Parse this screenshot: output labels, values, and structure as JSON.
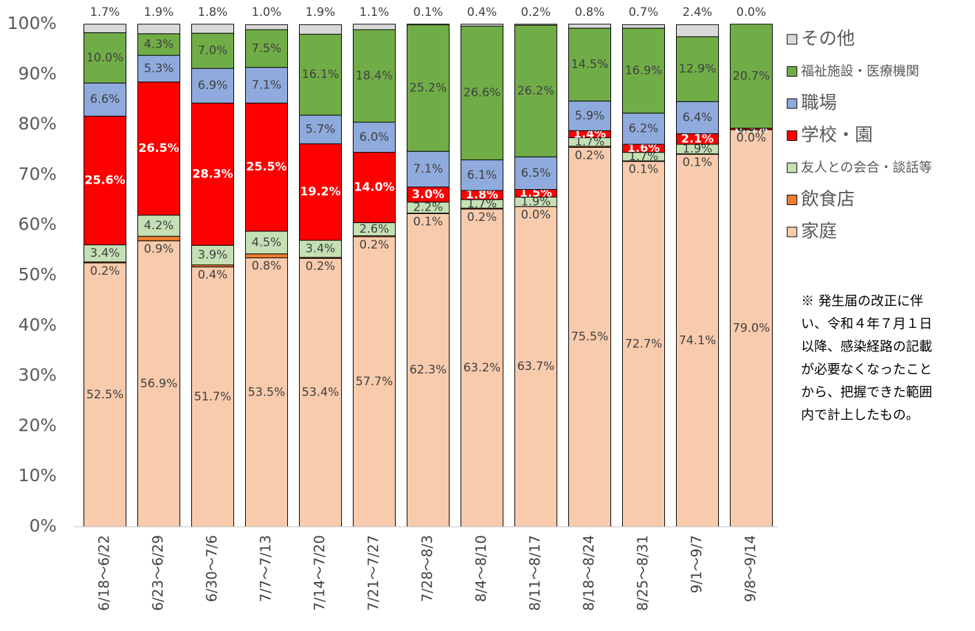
{
  "chart_data": {
    "type": "stacked_bar_percent",
    "categories": [
      "6/18～6/22",
      "6/23～6/29",
      "6/30～7/6",
      "7/7～7/13",
      "7/14～7/20",
      "7/21～7/27",
      "7/28～8/3",
      "8/4～8/10",
      "8/11～8/17",
      "8/18～8/24",
      "8/25～8/31",
      "9/1～9/7",
      "9/8～9/14"
    ],
    "series": [
      {
        "name": "家庭",
        "color": "#f8cbad",
        "values": [
          52.5,
          56.9,
          51.7,
          53.5,
          53.4,
          57.7,
          62.3,
          63.2,
          63.7,
          75.5,
          72.7,
          74.1,
          79.0
        ],
        "value_labels": [
          "52.5%",
          "56.9%",
          "51.7%",
          "53.5%",
          "53.4%",
          "57.7%",
          "62.3%",
          "63.2%",
          "63.7%",
          "75.5%",
          "72.7%",
          "74.1%",
          "79.0%"
        ]
      },
      {
        "name": "飲食店",
        "color": "#ed7d31",
        "values": [
          0.2,
          0.9,
          0.4,
          0.8,
          0.2,
          0.2,
          0.1,
          0.2,
          0.0,
          0.2,
          0.1,
          0.1,
          0.0
        ],
        "value_labels": [
          "0.2%",
          "0.9%",
          "0.4%",
          "0.8%",
          "0.2%",
          "0.2%",
          "0.1%",
          "0.2%",
          "0.0%",
          "0.2%",
          "0.1%",
          "0.1%",
          "0.0%"
        ]
      },
      {
        "name": "友人との会合・談話等",
        "color": "#c5e0b4",
        "values": [
          3.4,
          4.2,
          3.9,
          4.5,
          3.4,
          2.6,
          2.2,
          1.7,
          1.9,
          1.7,
          1.7,
          1.9,
          0.0
        ],
        "value_labels": [
          "3.4%",
          "4.2%",
          "3.9%",
          "4.5%",
          "3.4%",
          "2.6%",
          "2.2%",
          "1.7%",
          "1.9%",
          "1.7%",
          "1.7%",
          "1.9%",
          "0.0%"
        ]
      },
      {
        "name": "学校・園",
        "color": "#ff0000",
        "values": [
          25.6,
          26.5,
          28.3,
          25.5,
          19.2,
          14.0,
          3.0,
          1.8,
          1.5,
          1.4,
          1.6,
          2.1,
          0.3
        ],
        "value_labels": [
          "25.6%",
          "26.5%",
          "28.3%",
          "25.5%",
          "19.2%",
          "14.0%",
          "3.0%",
          "1.8%",
          "1.5%",
          "1.4%",
          "1.6%",
          "2.1%",
          "0.3%"
        ]
      },
      {
        "name": "職場",
        "color": "#8faadc",
        "values": [
          6.6,
          5.3,
          6.9,
          7.1,
          5.7,
          6.0,
          7.1,
          6.1,
          6.5,
          5.9,
          6.2,
          6.4,
          0.0
        ],
        "value_labels": [
          "6.6%",
          "5.3%",
          "6.9%",
          "7.1%",
          "5.7%",
          "6.0%",
          "7.1%",
          "6.1%",
          "6.5%",
          "5.9%",
          "6.2%",
          "6.4%",
          "0.0%"
        ]
      },
      {
        "name": "福祉施設・医療機関",
        "color": "#70ad47",
        "values": [
          10.0,
          4.3,
          7.0,
          7.5,
          16.1,
          18.4,
          25.2,
          26.6,
          26.2,
          14.5,
          16.9,
          12.9,
          20.7
        ],
        "value_labels": [
          "10.0%",
          "4.3%",
          "7.0%",
          "7.5%",
          "16.1%",
          "18.4%",
          "25.2%",
          "26.6%",
          "26.2%",
          "14.5%",
          "16.9%",
          "12.9%",
          "20.7%"
        ]
      },
      {
        "name": "その他",
        "color": "#d9d9d9",
        "values": [
          1.7,
          1.9,
          1.8,
          1.0,
          1.9,
          1.1,
          0.1,
          0.4,
          0.2,
          0.8,
          0.7,
          2.4,
          0.0
        ],
        "value_labels": [
          "1.7%",
          "1.9%",
          "1.8%",
          "1.0%",
          "1.9%",
          "1.1%",
          "0.1%",
          "0.4%",
          "0.2%",
          "0.8%",
          "0.7%",
          "2.4%",
          "0.0%"
        ]
      }
    ],
    "ylim": [
      0,
      100
    ],
    "yticks": [
      {
        "value": 0,
        "label": "0%"
      },
      {
        "value": 10,
        "label": "10%"
      },
      {
        "value": 20,
        "label": "20%"
      },
      {
        "value": 30,
        "label": "30%"
      },
      {
        "value": 40,
        "label": "40%"
      },
      {
        "value": 50,
        "label": "50%"
      },
      {
        "value": 60,
        "label": "60%"
      },
      {
        "value": 70,
        "label": "70%"
      },
      {
        "value": 80,
        "label": "80%"
      },
      {
        "value": 90,
        "label": "90%"
      },
      {
        "value": 100,
        "label": "100%"
      }
    ],
    "grid": false,
    "legend": "right",
    "note": [
      "※ 発生届の改正に伴",
      "い、令和４年７月１日",
      "以降、感染経路の記載",
      "が必要なくなったこと",
      "から、把握できた範囲",
      "内で計上したもの。"
    ]
  }
}
